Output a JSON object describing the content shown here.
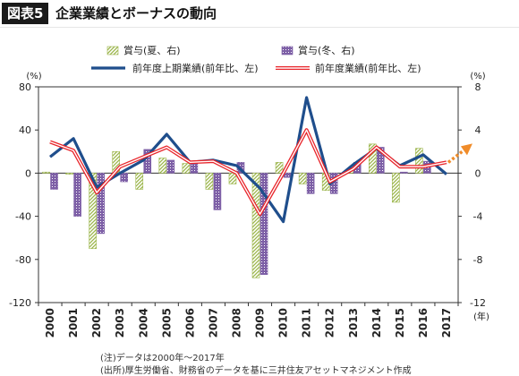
{
  "header": {
    "badge": "図表5",
    "title": "企業業績とボーナスの動向"
  },
  "legend": {
    "summer": "賞与(夏、右)",
    "winter": "賞与(冬、右)",
    "h1_profit": "前年度上期業績(前年比、左)",
    "fy_profit": "前年度業績(前年比、左)"
  },
  "axis_units": {
    "left": "(%)",
    "right": "(%)",
    "x": "(年)"
  },
  "notes": {
    "note1": "(注)データは2000年〜2017年",
    "note2": "(出所)厚生労働省、財務省のデータを基に三井住友アセットマネジメント作成"
  },
  "colors": {
    "summer_bar": "#9bb54a",
    "winter_bar": "#7d5fa6",
    "h1_line": "#1f4e8c",
    "fy_line": "#e8242a",
    "forecast_arrow": "#f08c2a"
  },
  "chart_data": {
    "type": "bar+line",
    "categories": [
      "2000",
      "2001",
      "2002",
      "2003",
      "2004",
      "2005",
      "2006",
      "2007",
      "2008",
      "2009",
      "2010",
      "2011",
      "2012",
      "2013",
      "2014",
      "2015",
      "2016",
      "2017"
    ],
    "left_axis": {
      "unit": "%",
      "ylim": [
        -120,
        80
      ],
      "ticks": [
        80,
        40,
        0,
        -40,
        -80,
        -120
      ]
    },
    "right_axis": {
      "unit": "%",
      "ylim": [
        -12,
        8
      ],
      "ticks": [
        8,
        4,
        0,
        -4,
        -8,
        -12
      ]
    },
    "grid": false,
    "legend_position": "top",
    "series": [
      {
        "name": "賞与(夏、右)",
        "kind": "bar",
        "axis": "right",
        "style": "hatched",
        "values": [
          0.1,
          -0.1,
          -7.0,
          2.0,
          -1.5,
          1.4,
          0.9,
          -1.5,
          -1.0,
          -9.7,
          1.0,
          -1.0,
          -1.6,
          0.3,
          2.7,
          -2.7,
          2.3,
          null
        ]
      },
      {
        "name": "賞与(冬、右)",
        "kind": "bar",
        "axis": "right",
        "style": "dotted",
        "values": [
          -1.5,
          -4.0,
          -5.6,
          -0.8,
          2.2,
          1.2,
          0.9,
          -3.4,
          1.0,
          -9.4,
          -0.4,
          -1.9,
          -1.9,
          1.0,
          2.4,
          0.1,
          1.1,
          null
        ]
      },
      {
        "name": "前年度上期業績(前年比、左)",
        "kind": "line",
        "axis": "left",
        "values": [
          15,
          32,
          -13,
          0,
          12,
          36,
          10,
          12,
          7,
          -14,
          -45,
          70,
          -10,
          8,
          23,
          7,
          17,
          -1
        ]
      },
      {
        "name": "前年度業績(前年比、左)",
        "kind": "line",
        "axis": "left",
        "values": [
          29,
          21,
          -18,
          6,
          15,
          24,
          10,
          11,
          0,
          -38,
          0,
          40,
          -8,
          4,
          24,
          6,
          6,
          10
        ]
      }
    ],
    "annotations": [
      "2017年から上向きの破線矢印(予想)"
    ]
  }
}
